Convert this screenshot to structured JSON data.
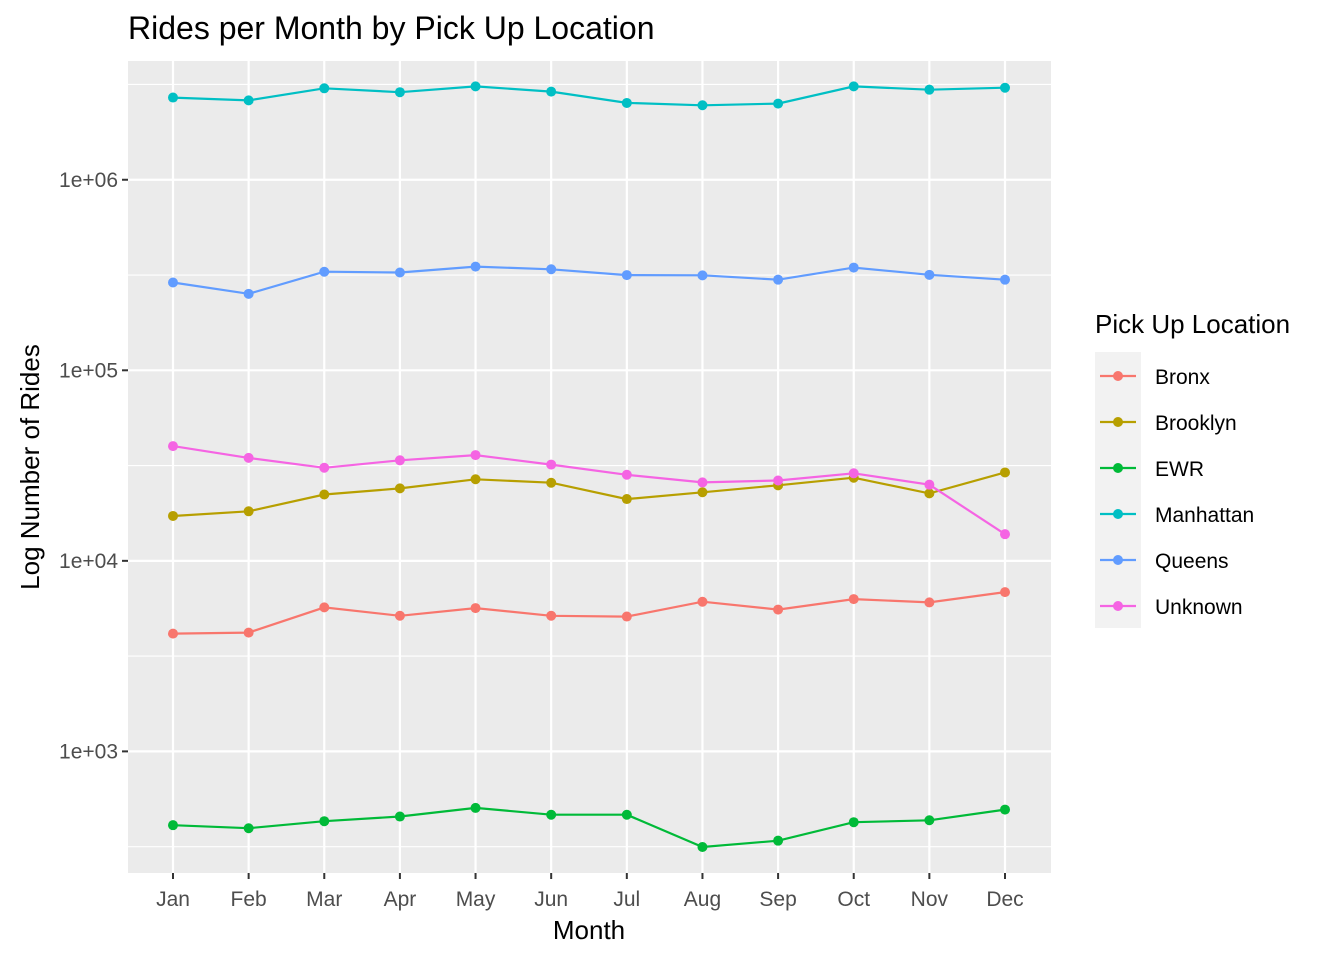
{
  "chart_data": {
    "type": "line",
    "title": "Rides per Month by Pick Up Location",
    "xlabel": "Month",
    "ylabel": "Log Number of Rides",
    "y_scale": "log10",
    "ylim": [
      230,
      4200000
    ],
    "y_ticks": [
      1000,
      10000,
      100000,
      1000000
    ],
    "y_tick_labels": [
      "1e+03",
      "1e+04",
      "1e+05",
      "1e+06"
    ],
    "grid": true,
    "legend_position": "right",
    "legend_title": "Pick Up Location",
    "categories": [
      "Jan",
      "Feb",
      "Mar",
      "Apr",
      "May",
      "Jun",
      "Jul",
      "Aug",
      "Sep",
      "Oct",
      "Nov",
      "Dec"
    ],
    "series": [
      {
        "name": "Bronx",
        "color": "#F8766D",
        "values": [
          4150,
          4200,
          5700,
          5150,
          5650,
          5150,
          5100,
          6100,
          5550,
          6300,
          6050,
          6850
        ]
      },
      {
        "name": "Brooklyn",
        "color": "#B79F00",
        "values": [
          17200,
          18200,
          22300,
          24000,
          26800,
          25700,
          21100,
          22900,
          24900,
          27300,
          22600,
          29100
        ]
      },
      {
        "name": "EWR",
        "color": "#00BA38",
        "values": [
          410,
          395,
          430,
          455,
          505,
          465,
          465,
          315,
          340,
          425,
          435,
          495
        ]
      },
      {
        "name": "Manhattan",
        "color": "#00BFC4",
        "values": [
          2700000,
          2610000,
          3020000,
          2880000,
          3090000,
          2900000,
          2530000,
          2460000,
          2510000,
          3090000,
          2970000,
          3040000
        ]
      },
      {
        "name": "Queens",
        "color": "#619CFF",
        "values": [
          289000,
          252000,
          329000,
          326000,
          350000,
          339000,
          316000,
          315000,
          299000,
          346000,
          317000,
          299000
        ]
      },
      {
        "name": "Unknown",
        "color": "#F564E3",
        "values": [
          40000,
          34700,
          30800,
          33700,
          35900,
          32000,
          28300,
          25800,
          26400,
          28800,
          25100,
          13800
        ]
      }
    ]
  }
}
